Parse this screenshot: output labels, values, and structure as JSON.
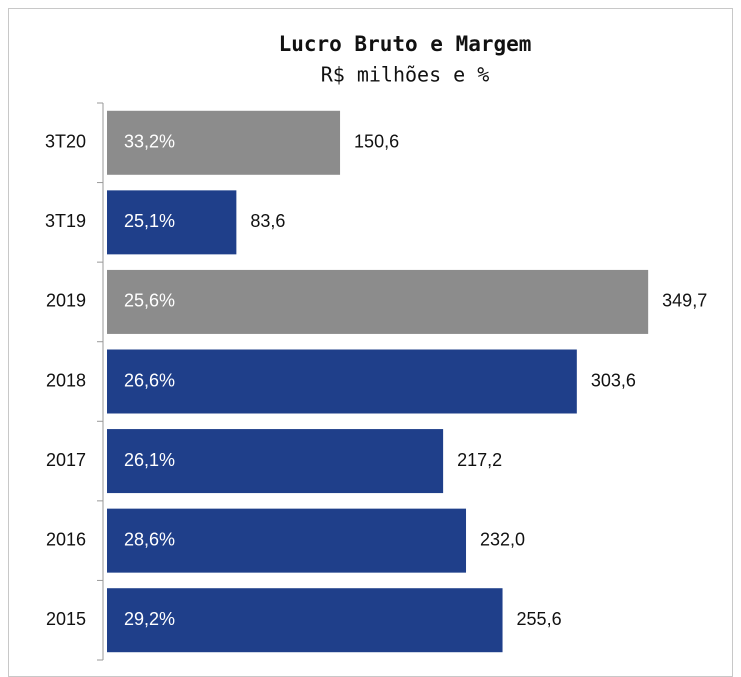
{
  "chart_data": {
    "type": "hbar",
    "title": "Lucro Bruto e Margem",
    "subtitle": "R$ milhões e %",
    "categories": [
      "3T20",
      "3T19",
      "2019",
      "2018",
      "2017",
      "2016",
      "2015"
    ],
    "values": [
      150.6,
      83.6,
      349.7,
      303.6,
      217.2,
      232.0,
      255.6
    ],
    "value_labels": [
      "150,6",
      "83,6",
      "349,7",
      "303,6",
      "217,2",
      "232,0",
      "255,6"
    ],
    "margins": [
      33.2,
      25.1,
      25.6,
      26.6,
      26.1,
      28.6,
      29.2
    ],
    "margin_labels": [
      "33,2%",
      "25,1%",
      "25,6%",
      "26,6%",
      "26,1%",
      "28,6%",
      "29,2%"
    ],
    "colors": [
      "#8c8c8c",
      "#1f3f8a",
      "#8c8c8c",
      "#1f3f8a",
      "#1f3f8a",
      "#1f3f8a",
      "#1f3f8a"
    ],
    "xlim": [
      0,
      400
    ]
  }
}
